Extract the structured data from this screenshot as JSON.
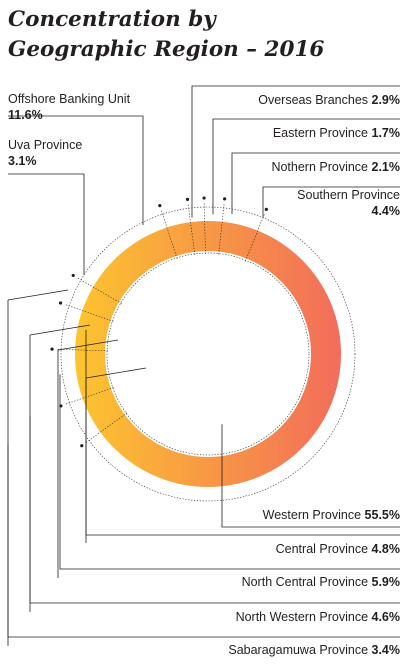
{
  "chart_data": {
    "type": "donut",
    "title_lines": [
      "Concentration by",
      "Geographic Region – 2016"
    ],
    "unit": "%",
    "slices": [
      {
        "name": "Overseas Branches",
        "value": 2.9
      },
      {
        "name": "Eastern Province",
        "value": 1.7
      },
      {
        "name": "Nothern Province",
        "value": 2.1
      },
      {
        "name": "Southern Province",
        "value": 4.4
      },
      {
        "name": "Western Province",
        "value": 55.5
      },
      {
        "name": "Sabaragamuwa Province",
        "value": 3.4
      },
      {
        "name": "North Western Province",
        "value": 4.6
      },
      {
        "name": "North Central Province",
        "value": 5.9
      },
      {
        "name": "Central Province",
        "value": 4.8
      },
      {
        "name": "Uva Province",
        "value": 3.1
      },
      {
        "name": "Offshore Banking Unit",
        "value": 11.6
      }
    ],
    "colors": {
      "gradient_start": "#fdc62e",
      "gradient_end": "#f26b5b",
      "text": "#231f20"
    }
  }
}
